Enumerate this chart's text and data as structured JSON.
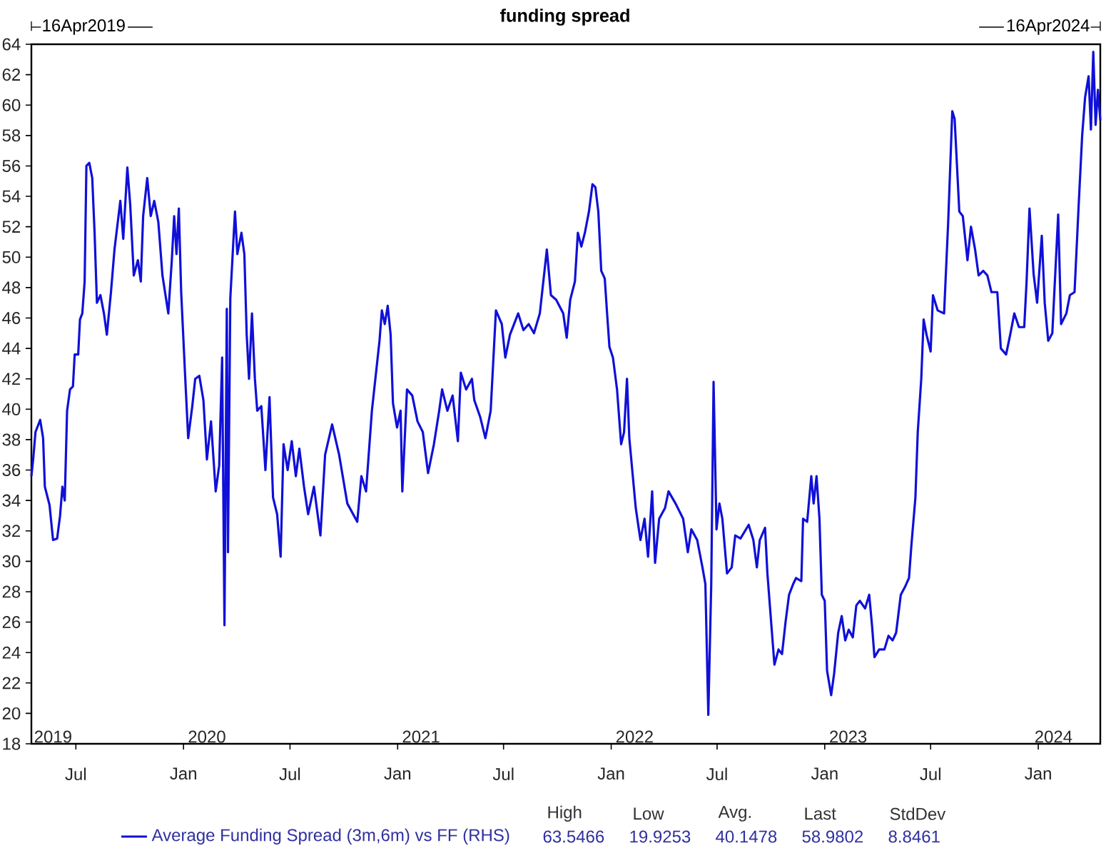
{
  "chart_data": {
    "type": "line",
    "title": "funding spread",
    "x": [
      "2019-04-16",
      "2019-04-19",
      "2019-04-23",
      "2019-05-01",
      "2019-05-06",
      "2019-05-09",
      "2019-05-17",
      "2019-05-23",
      "2019-05-30",
      "2019-06-04",
      "2019-06-08",
      "2019-06-12",
      "2019-06-16",
      "2019-06-21",
      "2019-06-26",
      "2019-06-29",
      "2019-07-05",
      "2019-07-08",
      "2019-07-12",
      "2019-07-16",
      "2019-07-19",
      "2019-07-24",
      "2019-07-29",
      "2019-08-02",
      "2019-08-06",
      "2019-08-12",
      "2019-08-18",
      "2019-08-23",
      "2019-08-30",
      "2019-09-05",
      "2019-09-15",
      "2019-09-20",
      "2019-09-27",
      "2019-10-02",
      "2019-10-08",
      "2019-10-15",
      "2019-10-20",
      "2019-10-24",
      "2019-10-31",
      "2019-11-06",
      "2019-11-12",
      "2019-11-19",
      "2019-11-26",
      "2019-12-06",
      "2019-12-12",
      "2019-12-16",
      "2019-12-20",
      "2019-12-24",
      "2019-12-28",
      "2020-01-04",
      "2020-01-09",
      "2020-01-16",
      "2020-01-21",
      "2020-01-28",
      "2020-02-04",
      "2020-02-10",
      "2020-02-17",
      "2020-02-25",
      "2020-03-02",
      "2020-03-07",
      "2020-03-11",
      "2020-03-15",
      "2020-03-17",
      "2020-03-21",
      "2020-03-26",
      "2020-03-29",
      "2020-04-02",
      "2020-04-09",
      "2020-04-14",
      "2020-04-18",
      "2020-04-22",
      "2020-04-27",
      "2020-05-02",
      "2020-05-06",
      "2020-05-13",
      "2020-05-20",
      "2020-05-27",
      "2020-06-02",
      "2020-06-09",
      "2020-06-15",
      "2020-06-20",
      "2020-06-27",
      "2020-07-04",
      "2020-07-11",
      "2020-07-17",
      "2020-07-25",
      "2020-08-01",
      "2020-08-11",
      "2020-08-22",
      "2020-08-30",
      "2020-09-11",
      "2020-09-23",
      "2020-10-07",
      "2020-10-24",
      "2020-10-31",
      "2020-11-08",
      "2020-11-18",
      "2020-12-01",
      "2020-12-05",
      "2020-12-10",
      "2020-12-15",
      "2020-12-20",
      "2020-12-24",
      "2020-12-31",
      "2021-01-06",
      "2021-01-09",
      "2021-01-17",
      "2021-01-26",
      "2021-02-04",
      "2021-02-13",
      "2021-02-22",
      "2021-03-04",
      "2021-03-13",
      "2021-03-18",
      "2021-03-27",
      "2021-04-05",
      "2021-04-14",
      "2021-04-19",
      "2021-04-28",
      "2021-05-08",
      "2021-05-12",
      "2021-05-22",
      "2021-05-31",
      "2021-06-09",
      "2021-06-18",
      "2021-06-28",
      "2021-07-04",
      "2021-07-12",
      "2021-07-26",
      "2021-08-04",
      "2021-08-13",
      "2021-08-22",
      "2021-09-01",
      "2021-09-13",
      "2021-09-20",
      "2021-09-29",
      "2021-10-11",
      "2021-10-17",
      "2021-10-23",
      "2021-10-31",
      "2021-11-05",
      "2021-11-11",
      "2021-11-17",
      "2021-11-24",
      "2021-11-30",
      "2021-12-05",
      "2021-12-10",
      "2021-12-15",
      "2021-12-21",
      "2021-12-25",
      "2021-12-29",
      "2022-01-04",
      "2022-01-11",
      "2022-01-18",
      "2022-01-23",
      "2022-01-28",
      "2022-02-01",
      "2022-02-06",
      "2022-02-12",
      "2022-02-20",
      "2022-02-27",
      "2022-03-05",
      "2022-03-12",
      "2022-03-17",
      "2022-03-24",
      "2022-04-03",
      "2022-04-09",
      "2022-04-21",
      "2022-05-04",
      "2022-05-12",
      "2022-05-18",
      "2022-05-28",
      "2022-06-06",
      "2022-06-11",
      "2022-06-16",
      "2022-06-21",
      "2022-06-25",
      "2022-06-30",
      "2022-07-05",
      "2022-07-10",
      "2022-07-18",
      "2022-07-26",
      "2022-08-01",
      "2022-08-10",
      "2022-08-24",
      "2022-09-01",
      "2022-09-07",
      "2022-09-12",
      "2022-09-21",
      "2022-09-25",
      "2022-09-30",
      "2022-10-07",
      "2022-10-14",
      "2022-10-20",
      "2022-10-26",
      "2022-11-01",
      "2022-11-08",
      "2022-11-13",
      "2022-11-22",
      "2022-11-25",
      "2022-12-02",
      "2022-12-09",
      "2022-12-13",
      "2022-12-18",
      "2022-12-23",
      "2022-12-27",
      "2023-01-01",
      "2023-01-05",
      "2023-01-12",
      "2023-01-17",
      "2023-01-24",
      "2023-01-30",
      "2023-02-05",
      "2023-02-11",
      "2023-02-18",
      "2023-02-24",
      "2023-03-02",
      "2023-03-11",
      "2023-03-18",
      "2023-03-23",
      "2023-03-27",
      "2023-04-04",
      "2023-04-13",
      "2023-04-20",
      "2023-04-27",
      "2023-05-03",
      "2023-05-11",
      "2023-05-18",
      "2023-05-25",
      "2023-05-29",
      "2023-06-05",
      "2023-06-09",
      "2023-06-15",
      "2023-06-19",
      "2023-06-24",
      "2023-07-01",
      "2023-07-05",
      "2023-07-13",
      "2023-07-24",
      "2023-07-31",
      "2023-08-07",
      "2023-08-11",
      "2023-08-19",
      "2023-08-25",
      "2023-09-02",
      "2023-09-08",
      "2023-09-15",
      "2023-09-21",
      "2023-09-29",
      "2023-10-06",
      "2023-10-13",
      "2023-10-23",
      "2023-10-29",
      "2023-11-07",
      "2023-11-14",
      "2023-11-21",
      "2023-11-29",
      "2023-12-08",
      "2023-12-12",
      "2023-12-17",
      "2023-12-24",
      "2023-12-30",
      "2024-01-07",
      "2024-01-12",
      "2024-01-18",
      "2024-01-25",
      "2024-02-04",
      "2024-02-09",
      "2024-02-18",
      "2024-02-24",
      "2024-03-03",
      "2024-03-10",
      "2024-03-16",
      "2024-03-21",
      "2024-03-27",
      "2024-03-31",
      "2024-04-04",
      "2024-04-08",
      "2024-04-12",
      "2024-04-16"
    ],
    "series": [
      {
        "name": "Average Funding Spread (3m,6m) vs FF (RHS)",
        "color": "#1010d8",
        "values": [
          35.6,
          36.7,
          38.5,
          39.3,
          38.1,
          34.9,
          33.7,
          31.4,
          31.5,
          33.0,
          34.9,
          34.0,
          39.9,
          41.3,
          41.5,
          43.6,
          43.6,
          45.9,
          46.3,
          48.4,
          56.0,
          56.2,
          55.2,
          51.6,
          47.0,
          47.5,
          46.3,
          44.9,
          47.7,
          50.5,
          53.7,
          51.2,
          55.9,
          53.4,
          48.8,
          49.8,
          48.4,
          52.7,
          55.2,
          52.7,
          53.7,
          52.3,
          48.8,
          46.3,
          49.8,
          52.7,
          50.2,
          53.2,
          47.7,
          42.0,
          38.1,
          40.2,
          42.0,
          42.2,
          40.6,
          36.7,
          39.2,
          34.6,
          36.3,
          43.4,
          25.8,
          46.6,
          30.6,
          47.3,
          50.9,
          53.0,
          50.2,
          51.6,
          50.2,
          44.9,
          42.0,
          46.3,
          42.0,
          39.9,
          40.2,
          36.0,
          40.8,
          34.2,
          33.1,
          30.3,
          37.7,
          36.0,
          37.9,
          35.6,
          37.4,
          34.9,
          33.1,
          34.9,
          31.7,
          37.0,
          39.0,
          37.0,
          33.8,
          32.6,
          35.6,
          34.6,
          39.9,
          44.5,
          46.5,
          45.6,
          46.8,
          44.9,
          40.4,
          38.8,
          39.9,
          34.6,
          41.3,
          40.9,
          39.2,
          38.5,
          35.8,
          37.7,
          39.9,
          41.3,
          39.9,
          40.9,
          37.9,
          42.4,
          41.3,
          42.0,
          40.6,
          39.5,
          38.1,
          39.9,
          46.5,
          45.6,
          43.4,
          44.9,
          46.3,
          45.2,
          45.6,
          45.0,
          46.3,
          50.5,
          47.5,
          47.2,
          46.3,
          44.7,
          47.2,
          48.4,
          51.6,
          50.7,
          51.6,
          53.0,
          54.8,
          54.6,
          53.0,
          49.1,
          48.6,
          46.3,
          44.1,
          43.4,
          41.3,
          37.7,
          38.5,
          42.0,
          38.1,
          36.0,
          33.5,
          31.4,
          32.8,
          30.3,
          34.6,
          29.9,
          32.8,
          33.5,
          34.6,
          33.8,
          32.8,
          30.6,
          32.1,
          31.4,
          29.6,
          28.5,
          19.9,
          28.5,
          41.8,
          32.1,
          33.8,
          32.8,
          29.2,
          29.6,
          31.7,
          31.5,
          32.4,
          31.4,
          29.6,
          31.4,
          32.2,
          29.2,
          26.7,
          23.2,
          24.2,
          23.9,
          26.0,
          27.8,
          28.5,
          28.9,
          28.7,
          32.8,
          32.6,
          35.6,
          33.8,
          35.6,
          32.8,
          27.8,
          27.4,
          22.8,
          21.2,
          22.6,
          25.3,
          26.4,
          24.8,
          25.5,
          25.0,
          27.1,
          27.4,
          26.9,
          27.8,
          25.7,
          23.7,
          24.2,
          24.2,
          25.1,
          24.8,
          25.3,
          27.8,
          28.3,
          28.9,
          31.0,
          34.2,
          38.5,
          42.0,
          45.9,
          44.9,
          43.8,
          47.5,
          46.5,
          46.3,
          52.3,
          59.6,
          59.1,
          53.0,
          52.7,
          49.8,
          52.0,
          50.5,
          48.8,
          49.1,
          48.8,
          47.7,
          47.7,
          44.0,
          43.6,
          44.9,
          46.3,
          45.4,
          45.4,
          48.4,
          53.2,
          48.9,
          47.0,
          51.4,
          47.0,
          44.5,
          45.0,
          52.8,
          45.6,
          46.3,
          47.5,
          47.7,
          53.4,
          58.0,
          60.5,
          61.9,
          58.4,
          63.5,
          58.7,
          61.0,
          59.0
        ]
      }
    ],
    "xlim": [
      "2019-04-16",
      "2024-04-16"
    ],
    "xticks": [
      {
        "value": "2019-07-01",
        "label": "Jul"
      },
      {
        "value": "2020-01-01",
        "label": "Jan"
      },
      {
        "value": "2020-07-01",
        "label": "Jul"
      },
      {
        "value": "2021-01-01",
        "label": "Jan"
      },
      {
        "value": "2021-07-01",
        "label": "Jul"
      },
      {
        "value": "2022-01-01",
        "label": "Jan"
      },
      {
        "value": "2022-07-01",
        "label": "Jul"
      },
      {
        "value": "2023-01-01",
        "label": "Jan"
      },
      {
        "value": "2023-07-01",
        "label": "Jul"
      },
      {
        "value": "2024-01-01",
        "label": "Jan"
      }
    ],
    "x2lim": [
      "2019-04-16",
      "2024-04-16"
    ],
    "x2ticks": [
      {
        "value": "2019-05-23",
        "label": "2019"
      },
      {
        "value": "2020-02-10",
        "label": "2020"
      },
      {
        "value": "2021-02-10",
        "label": "2021"
      },
      {
        "value": "2022-02-10",
        "label": "2022"
      },
      {
        "value": "2023-02-10",
        "label": "2023"
      },
      {
        "value": "2024-01-27",
        "label": "2024"
      }
    ],
    "ylim": [
      18,
      64
    ],
    "yticks": [
      18,
      20,
      22,
      24,
      26,
      28,
      30,
      32,
      34,
      36,
      38,
      40,
      42,
      44,
      46,
      48,
      50,
      52,
      54,
      56,
      58,
      60,
      62,
      64
    ],
    "legend": "bottom",
    "grid": false,
    "annotations": [
      "16Apr2019",
      "16Apr2024",
      "High",
      "Low",
      "Avg.",
      "Last",
      "StdDev",
      "63.5466",
      "19.9253",
      "40.1478",
      "58.9802",
      "8.8461"
    ]
  }
}
